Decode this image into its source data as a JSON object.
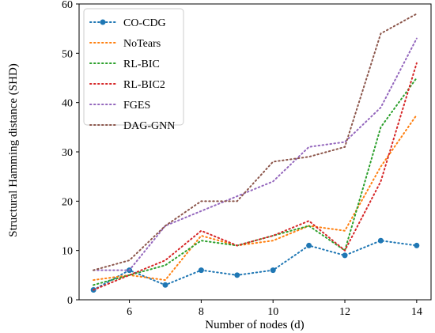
{
  "chart_data": {
    "type": "line",
    "title": "",
    "xlabel": "Number of nodes (d)",
    "ylabel": "Structural Hamming distance (SHD)",
    "xlim": [
      4.6,
      14.4
    ],
    "ylim": [
      0,
      60
    ],
    "xticks": [
      6,
      8,
      10,
      12,
      14
    ],
    "yticks": [
      0,
      10,
      20,
      30,
      40,
      50,
      60
    ],
    "grid": false,
    "legend_position": "top-left",
    "x": [
      5,
      6,
      7,
      8,
      9,
      10,
      11,
      12,
      13,
      14
    ],
    "series": [
      {
        "name": "CO-CDG",
        "color": "#1f77b4",
        "markers": true,
        "values": [
          2,
          6,
          3,
          6,
          5,
          6,
          11,
          9,
          12,
          11
        ]
      },
      {
        "name": "NoTears",
        "color": "#ff7f0e",
        "markers": false,
        "values": [
          4,
          5,
          4,
          13,
          11,
          12,
          15,
          14,
          27,
          37.5
        ]
      },
      {
        "name": "RL-BIC",
        "color": "#2ca02c",
        "markers": false,
        "values": [
          3,
          5,
          7,
          12,
          11,
          13,
          15,
          10,
          35,
          45
        ]
      },
      {
        "name": "RL-BIC2",
        "color": "#d62728",
        "markers": false,
        "values": [
          2,
          5,
          8,
          14,
          11,
          13,
          16,
          10,
          24,
          48
        ]
      },
      {
        "name": "FGES",
        "color": "#9467bd",
        "markers": false,
        "values": [
          6,
          6,
          15,
          18,
          21,
          24,
          31,
          32,
          39,
          53
        ]
      },
      {
        "name": "DAG-GNN",
        "color": "#8c564b",
        "markers": false,
        "values": [
          6,
          8,
          15,
          20,
          20,
          28,
          29,
          31,
          54,
          58
        ]
      }
    ]
  }
}
